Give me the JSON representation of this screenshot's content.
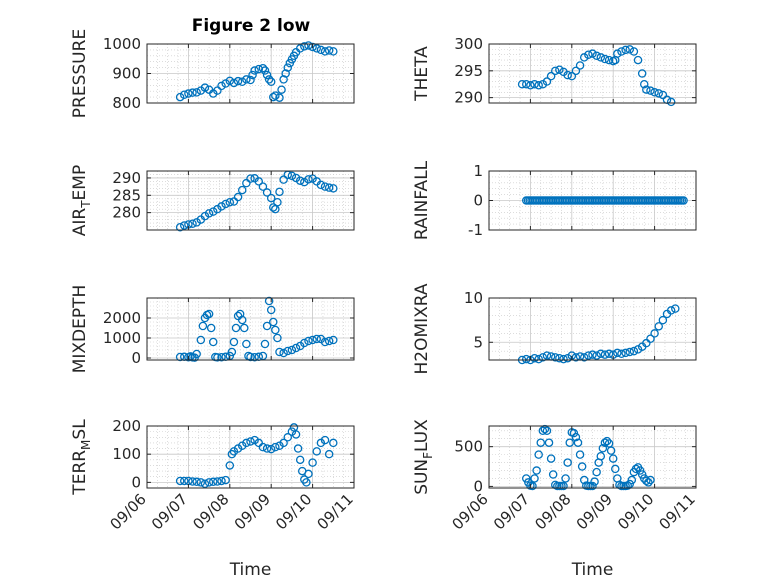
{
  "figure": {
    "title": "Figure 2 low",
    "colors": {
      "marker": "#0072BD",
      "axes": "#262626",
      "grid": "#c8c8c8",
      "background": "#ffffff"
    }
  },
  "chart_data": [
    {
      "type": "scatter",
      "ylabel": "PRESSURE",
      "ylim": [
        800,
        1000
      ],
      "yticks": [
        "800",
        "900",
        "1000"
      ],
      "xlim": [
        6,
        11
      ],
      "grid": true,
      "points": [
        [
          6.8,
          820
        ],
        [
          6.9,
          828
        ],
        [
          7.0,
          832
        ],
        [
          7.1,
          835
        ],
        [
          7.2,
          836
        ],
        [
          7.3,
          842
        ],
        [
          7.4,
          852
        ],
        [
          7.5,
          845
        ],
        [
          7.6,
          832
        ],
        [
          7.7,
          842
        ],
        [
          7.8,
          858
        ],
        [
          7.9,
          866
        ],
        [
          8.0,
          875
        ],
        [
          8.1,
          868
        ],
        [
          8.2,
          874
        ],
        [
          8.3,
          872
        ],
        [
          8.4,
          880
        ],
        [
          8.5,
          878
        ],
        [
          8.55,
          895
        ],
        [
          8.6,
          910
        ],
        [
          8.7,
          915
        ],
        [
          8.8,
          918
        ],
        [
          8.85,
          910
        ],
        [
          8.9,
          895
        ],
        [
          8.95,
          880
        ],
        [
          9.0,
          872
        ],
        [
          9.05,
          820
        ],
        [
          9.1,
          825
        ],
        [
          9.2,
          818
        ],
        [
          9.25,
          845
        ],
        [
          9.3,
          880
        ],
        [
          9.35,
          900
        ],
        [
          9.4,
          920
        ],
        [
          9.45,
          935
        ],
        [
          9.5,
          948
        ],
        [
          9.55,
          960
        ],
        [
          9.6,
          972
        ],
        [
          9.7,
          985
        ],
        [
          9.8,
          992
        ],
        [
          9.9,
          995
        ],
        [
          10.0,
          990
        ],
        [
          10.1,
          985
        ],
        [
          10.2,
          980
        ],
        [
          10.3,
          975
        ],
        [
          10.4,
          978
        ],
        [
          10.5,
          975
        ]
      ]
    },
    {
      "type": "scatter",
      "ylabel": "THETA",
      "ylim": [
        289,
        300
      ],
      "yticks": [
        "290",
        "295",
        "300"
      ],
      "xlim": [
        6,
        11
      ],
      "grid": true,
      "points": [
        [
          6.8,
          292.5
        ],
        [
          6.9,
          292.5
        ],
        [
          7.0,
          292.3
        ],
        [
          7.1,
          292.5
        ],
        [
          7.2,
          292.3
        ],
        [
          7.3,
          292.5
        ],
        [
          7.4,
          293.0
        ],
        [
          7.5,
          294.0
        ],
        [
          7.6,
          295.0
        ],
        [
          7.7,
          295.2
        ],
        [
          7.8,
          294.8
        ],
        [
          7.9,
          294.2
        ],
        [
          8.0,
          294.0
        ],
        [
          8.1,
          295.0
        ],
        [
          8.2,
          296.0
        ],
        [
          8.3,
          297.5
        ],
        [
          8.4,
          298.0
        ],
        [
          8.5,
          298.2
        ],
        [
          8.6,
          297.8
        ],
        [
          8.7,
          297.5
        ],
        [
          8.8,
          297.2
        ],
        [
          8.9,
          297.0
        ],
        [
          9.0,
          296.8
        ],
        [
          9.05,
          297.0
        ],
        [
          9.1,
          298.2
        ],
        [
          9.2,
          298.6
        ],
        [
          9.3,
          298.9
        ],
        [
          9.4,
          299.0
        ],
        [
          9.5,
          298.6
        ],
        [
          9.6,
          297.0
        ],
        [
          9.7,
          294.5
        ],
        [
          9.75,
          292.5
        ],
        [
          9.8,
          291.5
        ],
        [
          9.9,
          291.3
        ],
        [
          10.0,
          291.0
        ],
        [
          10.1,
          290.8
        ],
        [
          10.2,
          290.5
        ],
        [
          10.3,
          289.6
        ],
        [
          10.4,
          289.2
        ]
      ]
    },
    {
      "type": "scatter",
      "ylabel": "AIR_TEMP",
      "ylabel_parts": [
        "AIR",
        "T",
        "EMP"
      ],
      "ylim": [
        275,
        292
      ],
      "yticks": [
        "280",
        "285",
        "290"
      ],
      "xlim": [
        6,
        11
      ],
      "grid": true,
      "points": [
        [
          6.8,
          275.8
        ],
        [
          6.9,
          276.3
        ],
        [
          7.0,
          276.6
        ],
        [
          7.1,
          276.8
        ],
        [
          7.2,
          277.2
        ],
        [
          7.3,
          278.0
        ],
        [
          7.4,
          279.0
        ],
        [
          7.5,
          279.8
        ],
        [
          7.6,
          280.3
        ],
        [
          7.7,
          281.0
        ],
        [
          7.8,
          281.8
        ],
        [
          7.9,
          282.5
        ],
        [
          8.0,
          283.0
        ],
        [
          8.1,
          283.2
        ],
        [
          8.2,
          284.5
        ],
        [
          8.3,
          286.5
        ],
        [
          8.4,
          288.5
        ],
        [
          8.5,
          289.8
        ],
        [
          8.6,
          289.9
        ],
        [
          8.7,
          289.0
        ],
        [
          8.8,
          287.5
        ],
        [
          8.9,
          285.8
        ],
        [
          9.0,
          284.2
        ],
        [
          9.05,
          281.5
        ],
        [
          9.1,
          281.0
        ],
        [
          9.15,
          283.0
        ],
        [
          9.2,
          286.0
        ],
        [
          9.3,
          289.5
        ],
        [
          9.4,
          290.9
        ],
        [
          9.5,
          290.6
        ],
        [
          9.6,
          290.0
        ],
        [
          9.7,
          289.2
        ],
        [
          9.8,
          288.8
        ],
        [
          9.9,
          289.6
        ],
        [
          10.0,
          289.8
        ],
        [
          10.1,
          289.0
        ],
        [
          10.2,
          288.0
        ],
        [
          10.3,
          287.5
        ],
        [
          10.4,
          287.2
        ],
        [
          10.5,
          287.0
        ]
      ]
    },
    {
      "type": "scatter",
      "ylabel": "RAINFALL",
      "ylim": [
        -1,
        1
      ],
      "yticks": [
        "-1",
        "0",
        "1"
      ],
      "xlim": [
        6,
        11
      ],
      "grid": true,
      "constant_value": 0,
      "x_range": [
        6.9,
        10.7
      ],
      "num_points": 90
    },
    {
      "type": "scatter",
      "ylabel": "MIXDEPTH",
      "ylim": [
        -100,
        3000
      ],
      "yticks": [
        "0",
        "1000",
        "2000"
      ],
      "xlim": [
        6,
        11
      ],
      "grid": true,
      "points": [
        [
          6.8,
          50
        ],
        [
          6.9,
          60
        ],
        [
          7.0,
          40
        ],
        [
          7.05,
          80
        ],
        [
          7.1,
          30
        ],
        [
          7.15,
          20
        ],
        [
          7.2,
          200
        ],
        [
          7.3,
          900
        ],
        [
          7.35,
          1600
        ],
        [
          7.4,
          2000
        ],
        [
          7.45,
          2150
        ],
        [
          7.5,
          2200
        ],
        [
          7.55,
          1500
        ],
        [
          7.6,
          800
        ],
        [
          7.65,
          50
        ],
        [
          7.7,
          30
        ],
        [
          7.8,
          40
        ],
        [
          7.9,
          60
        ],
        [
          8.0,
          100
        ],
        [
          8.05,
          300
        ],
        [
          8.1,
          800
        ],
        [
          8.15,
          1500
        ],
        [
          8.2,
          2100
        ],
        [
          8.25,
          2200
        ],
        [
          8.3,
          1900
        ],
        [
          8.35,
          1500
        ],
        [
          8.4,
          700
        ],
        [
          8.45,
          100
        ],
        [
          8.5,
          50
        ],
        [
          8.6,
          40
        ],
        [
          8.7,
          60
        ],
        [
          8.8,
          100
        ],
        [
          8.85,
          700
        ],
        [
          8.9,
          1600
        ],
        [
          8.95,
          2850
        ],
        [
          9.0,
          2400
        ],
        [
          9.05,
          1800
        ],
        [
          9.1,
          1400
        ],
        [
          9.15,
          1000
        ],
        [
          9.2,
          300
        ],
        [
          9.3,
          250
        ],
        [
          9.4,
          350
        ],
        [
          9.5,
          400
        ],
        [
          9.6,
          500
        ],
        [
          9.7,
          600
        ],
        [
          9.8,
          750
        ],
        [
          9.9,
          850
        ],
        [
          10.0,
          900
        ],
        [
          10.1,
          950
        ],
        [
          10.2,
          950
        ],
        [
          10.3,
          800
        ],
        [
          10.4,
          850
        ],
        [
          10.5,
          900
        ]
      ]
    },
    {
      "type": "scatter",
      "ylabel": "H2OMIXRA",
      "ylim": [
        3,
        10
      ],
      "yticks": [
        "5",
        "10"
      ],
      "xlim": [
        6,
        11
      ],
      "grid": true,
      "points": [
        [
          6.8,
          3.0
        ],
        [
          6.9,
          3.1
        ],
        [
          7.0,
          3.0
        ],
        [
          7.1,
          3.2
        ],
        [
          7.2,
          3.1
        ],
        [
          7.3,
          3.3
        ],
        [
          7.4,
          3.5
        ],
        [
          7.5,
          3.4
        ],
        [
          7.6,
          3.3
        ],
        [
          7.7,
          3.2
        ],
        [
          7.8,
          3.1
        ],
        [
          7.9,
          3.2
        ],
        [
          8.0,
          3.5
        ],
        [
          8.1,
          3.3
        ],
        [
          8.2,
          3.4
        ],
        [
          8.3,
          3.3
        ],
        [
          8.4,
          3.5
        ],
        [
          8.5,
          3.6
        ],
        [
          8.6,
          3.5
        ],
        [
          8.7,
          3.7
        ],
        [
          8.8,
          3.6
        ],
        [
          8.9,
          3.7
        ],
        [
          9.0,
          3.6
        ],
        [
          9.1,
          3.8
        ],
        [
          9.2,
          3.7
        ],
        [
          9.3,
          3.8
        ],
        [
          9.4,
          3.9
        ],
        [
          9.5,
          4.0
        ],
        [
          9.6,
          4.2
        ],
        [
          9.7,
          4.5
        ],
        [
          9.8,
          4.9
        ],
        [
          9.9,
          5.4
        ],
        [
          10.0,
          6.0
        ],
        [
          10.1,
          6.8
        ],
        [
          10.2,
          7.5
        ],
        [
          10.3,
          8.2
        ],
        [
          10.4,
          8.6
        ],
        [
          10.5,
          8.8
        ]
      ]
    },
    {
      "type": "scatter",
      "ylabel": "TERR_MSL",
      "ylabel_parts": [
        "TERR",
        "M",
        "SL"
      ],
      "ylim": [
        -20,
        200
      ],
      "yticks": [
        "0",
        "100",
        "200"
      ],
      "xlim": [
        6,
        11
      ],
      "xticks": [
        "09/06",
        "09/07",
        "09/08",
        "09/09",
        "09/10",
        "09/11"
      ],
      "xlabel": "Time",
      "grid": true,
      "points": [
        [
          6.8,
          5
        ],
        [
          6.9,
          5
        ],
        [
          7.0,
          5
        ],
        [
          7.1,
          3
        ],
        [
          7.2,
          2
        ],
        [
          7.3,
          0
        ],
        [
          7.4,
          -5
        ],
        [
          7.5,
          0
        ],
        [
          7.6,
          2
        ],
        [
          7.7,
          3
        ],
        [
          7.8,
          5
        ],
        [
          7.9,
          8
        ],
        [
          8.0,
          60
        ],
        [
          8.05,
          100
        ],
        [
          8.1,
          110
        ],
        [
          8.2,
          120
        ],
        [
          8.3,
          130
        ],
        [
          8.4,
          140
        ],
        [
          8.5,
          145
        ],
        [
          8.6,
          150
        ],
        [
          8.7,
          140
        ],
        [
          8.8,
          125
        ],
        [
          8.9,
          120
        ],
        [
          9.0,
          118
        ],
        [
          9.1,
          125
        ],
        [
          9.2,
          130
        ],
        [
          9.3,
          140
        ],
        [
          9.4,
          160
        ],
        [
          9.5,
          180
        ],
        [
          9.55,
          195
        ],
        [
          9.6,
          170
        ],
        [
          9.65,
          120
        ],
        [
          9.7,
          80
        ],
        [
          9.75,
          40
        ],
        [
          9.8,
          10
        ],
        [
          9.85,
          0
        ],
        [
          9.9,
          30
        ],
        [
          10.0,
          70
        ],
        [
          10.1,
          110
        ],
        [
          10.2,
          140
        ],
        [
          10.3,
          150
        ],
        [
          10.4,
          100
        ],
        [
          10.5,
          140
        ]
      ]
    },
    {
      "type": "scatter",
      "ylabel": "SUN_FLUX",
      "ylabel_parts": [
        "SUN",
        "F",
        "LUX"
      ],
      "ylim": [
        -20,
        760
      ],
      "yticks": [
        "0",
        "500"
      ],
      "xlim": [
        6,
        11
      ],
      "xticks": [
        "09/06",
        "09/07",
        "09/08",
        "09/09",
        "09/10",
        "09/11"
      ],
      "xlabel": "Time",
      "grid": true,
      "points": [
        [
          6.9,
          100
        ],
        [
          6.95,
          50
        ],
        [
          7.0,
          10
        ],
        [
          7.05,
          5
        ],
        [
          7.1,
          100
        ],
        [
          7.15,
          200
        ],
        [
          7.2,
          400
        ],
        [
          7.25,
          550
        ],
        [
          7.3,
          700
        ],
        [
          7.35,
          720
        ],
        [
          7.4,
          700
        ],
        [
          7.45,
          550
        ],
        [
          7.5,
          350
        ],
        [
          7.55,
          150
        ],
        [
          7.6,
          20
        ],
        [
          7.65,
          5
        ],
        [
          7.7,
          5
        ],
        [
          7.75,
          5
        ],
        [
          7.8,
          5
        ],
        [
          7.85,
          100
        ],
        [
          7.9,
          300
        ],
        [
          7.95,
          550
        ],
        [
          8.0,
          680
        ],
        [
          8.05,
          670
        ],
        [
          8.1,
          620
        ],
        [
          8.15,
          550
        ],
        [
          8.2,
          400
        ],
        [
          8.25,
          250
        ],
        [
          8.3,
          80
        ],
        [
          8.35,
          10
        ],
        [
          8.4,
          5
        ],
        [
          8.45,
          5
        ],
        [
          8.5,
          5
        ],
        [
          8.55,
          60
        ],
        [
          8.6,
          180
        ],
        [
          8.65,
          300
        ],
        [
          8.7,
          380
        ],
        [
          8.75,
          480
        ],
        [
          8.8,
          550
        ],
        [
          8.85,
          570
        ],
        [
          8.9,
          540
        ],
        [
          8.95,
          450
        ],
        [
          9.0,
          350
        ],
        [
          9.05,
          220
        ],
        [
          9.1,
          100
        ],
        [
          9.15,
          20
        ],
        [
          9.2,
          5
        ],
        [
          9.25,
          5
        ],
        [
          9.3,
          5
        ],
        [
          9.35,
          10
        ],
        [
          9.4,
          30
        ],
        [
          9.45,
          80
        ],
        [
          9.5,
          180
        ],
        [
          9.55,
          220
        ],
        [
          9.6,
          240
        ],
        [
          9.65,
          200
        ],
        [
          9.7,
          150
        ],
        [
          9.75,
          100
        ],
        [
          9.8,
          70
        ],
        [
          9.85,
          50
        ],
        [
          9.9,
          80
        ]
      ]
    }
  ]
}
